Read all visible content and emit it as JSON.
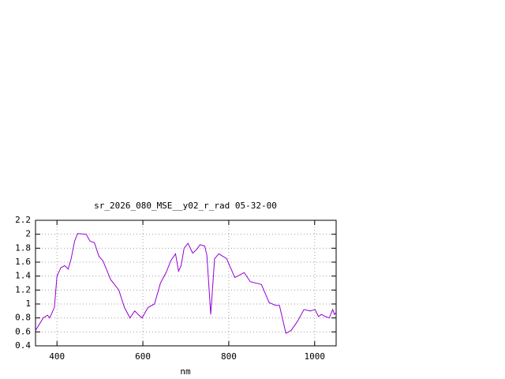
{
  "chart_data": {
    "type": "line",
    "title": "sr_2026_080_MSE__y02_r_rad 05-32-00",
    "x_label": "nm",
    "x": [
      350,
      368,
      378,
      383,
      394,
      400,
      409,
      418,
      426,
      433,
      441,
      448,
      468,
      477,
      487,
      498,
      507,
      525,
      544,
      557,
      570,
      581,
      589,
      598,
      612,
      627,
      641,
      654,
      665,
      676,
      683,
      689,
      696,
      705,
      716,
      725,
      733,
      744,
      749,
      758,
      767,
      777,
      795,
      814,
      836,
      850,
      876,
      894,
      909,
      918,
      933,
      945,
      960,
      975,
      990,
      1001,
      1009,
      1016,
      1025,
      1034,
      1042,
      1046,
      1050
    ],
    "series": [
      {
        "color": "#9400d3",
        "values": [
          0.62,
          0.8,
          0.84,
          0.8,
          0.95,
          1.4,
          1.52,
          1.55,
          1.5,
          1.65,
          1.9,
          2.01,
          2.0,
          1.9,
          1.88,
          1.68,
          1.62,
          1.35,
          1.2,
          0.95,
          0.8,
          0.9,
          0.85,
          0.8,
          0.95,
          1.0,
          1.3,
          1.45,
          1.62,
          1.72,
          1.47,
          1.55,
          1.8,
          1.87,
          1.73,
          1.78,
          1.85,
          1.83,
          1.7,
          0.85,
          1.65,
          1.72,
          1.65,
          1.38,
          1.45,
          1.32,
          1.28,
          1.02,
          0.98,
          0.98,
          0.58,
          0.62,
          0.75,
          0.92,
          0.9,
          0.92,
          0.82,
          0.85,
          0.82,
          0.8,
          0.92,
          0.85,
          0.88
        ]
      }
    ],
    "xlim": [
      350,
      1050
    ],
    "xticks": [
      400,
      600,
      800,
      1000
    ],
    "ylim": [
      0.4,
      2.2
    ],
    "yticks": [
      0.4,
      0.6,
      0.8,
      1,
      1.2,
      1.4,
      1.6,
      1.8,
      2,
      2.2
    ],
    "grid": true
  }
}
